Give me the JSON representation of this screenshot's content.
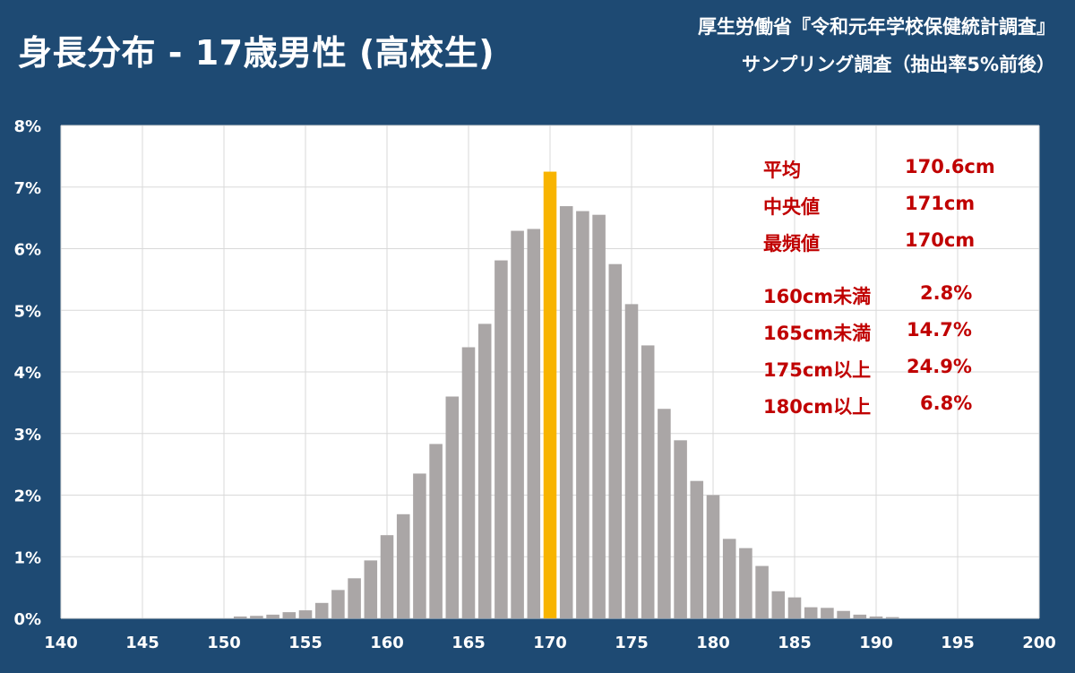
{
  "header": {
    "title": "身長分布 - 17歳男性 (高校生)",
    "source_line1": "厚生労働省『令和元年学校保健統計調査』",
    "source_line2": "サンプリング調査（抽出率5%前後）"
  },
  "stats": [
    {
      "label": "平均",
      "value": "170.6cm"
    },
    {
      "label": "中央値",
      "value": "171cm"
    },
    {
      "label": "最頻値",
      "value": "170cm"
    },
    {
      "label": "160cm未満",
      "value": "2.8%"
    },
    {
      "label": "165cm未満",
      "value": "14.7%"
    },
    {
      "label": "175cm以上",
      "value": "24.9%"
    },
    {
      "label": "180cm以上",
      "value": "6.8%"
    }
  ],
  "colors": {
    "background": "#1e4a73",
    "plot_background": "#ffffff",
    "bar": "#aaa6a6",
    "highlight_bar": "#f8b400",
    "grid": "#d9d9d9",
    "stats_text": "#c00000",
    "axis_text": "#ffffff"
  },
  "chart_data": {
    "type": "bar",
    "xlim": [
      140,
      200
    ],
    "ylim": [
      0,
      8
    ],
    "x_ticks": [
      "140",
      "145",
      "150",
      "155",
      "160",
      "165",
      "170",
      "175",
      "180",
      "185",
      "190",
      "195",
      "200"
    ],
    "y_ticks": [
      "0%",
      "1%",
      "2%",
      "3%",
      "4%",
      "5%",
      "6%",
      "7%",
      "8%"
    ],
    "unit": "%",
    "grid": true,
    "highlight_x": 170,
    "x": [
      151,
      152,
      153,
      154,
      155,
      156,
      157,
      158,
      159,
      160,
      161,
      162,
      163,
      164,
      165,
      166,
      167,
      168,
      169,
      170,
      171,
      172,
      173,
      174,
      175,
      176,
      177,
      178,
      179,
      180,
      181,
      182,
      183,
      184,
      185,
      186,
      187,
      188,
      189,
      190,
      191
    ],
    "values": [
      0.03,
      0.04,
      0.06,
      0.1,
      0.13,
      0.25,
      0.46,
      0.65,
      0.94,
      1.35,
      1.69,
      2.35,
      2.83,
      3.6,
      4.4,
      4.78,
      5.81,
      6.29,
      6.32,
      7.25,
      6.69,
      6.61,
      6.55,
      5.75,
      5.1,
      4.43,
      3.4,
      2.89,
      2.23,
      2.0,
      1.29,
      1.14,
      0.85,
      0.44,
      0.34,
      0.18,
      0.17,
      0.12,
      0.06,
      0.03,
      0.02
    ]
  }
}
